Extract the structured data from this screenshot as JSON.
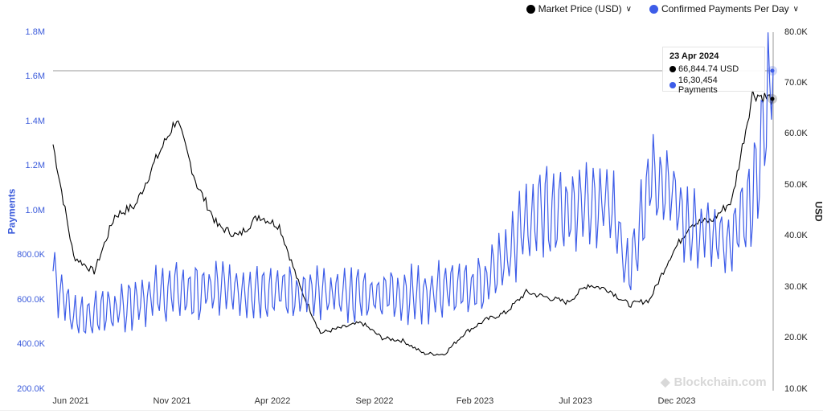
{
  "legend": [
    {
      "label": "Market Price (USD)",
      "color": "#000000"
    },
    {
      "label": "Confirmed Payments Per Day",
      "color": "#3d5ce8"
    }
  ],
  "axes": {
    "left": {
      "title": "Payments",
      "ticks": [
        "1.8M",
        "1.6M",
        "1.4M",
        "1.2M",
        "1.0M",
        "800.0K",
        "600.0K",
        "400.0K",
        "200.0K"
      ],
      "color": "#3b5bdb"
    },
    "right": {
      "title": "USD",
      "ticks": [
        "80.0K",
        "70.0K",
        "60.0K",
        "50.0K",
        "40.0K",
        "30.0K",
        "20.0K",
        "10.0K"
      ]
    },
    "x": {
      "ticks": [
        "Jun 2021",
        "Nov 2021",
        "Apr 2022",
        "Sep 2022",
        "Feb 2023",
        "Jul 2023",
        "Dec 2023"
      ]
    }
  },
  "tooltip": {
    "date": "23 Apr 2024",
    "price": "66,844.74 USD",
    "payments": "16,30,454 Payments"
  },
  "watermark": "Blockchain.com",
  "chart_data": {
    "type": "line",
    "title": "",
    "xlabel": "",
    "ylabel_left": "Payments",
    "ylabel_right": "USD",
    "ylim_left": [
      200000,
      1800000
    ],
    "ylim_right": [
      10000,
      80000
    ],
    "grid": false,
    "legend_position": "top-right",
    "x": [
      "2021-05",
      "2021-06",
      "2021-07",
      "2021-08",
      "2021-09",
      "2021-10",
      "2021-11",
      "2021-12",
      "2022-01",
      "2022-02",
      "2022-03",
      "2022-04",
      "2022-05",
      "2022-06",
      "2022-07",
      "2022-08",
      "2022-09",
      "2022-10",
      "2022-11",
      "2022-12",
      "2023-01",
      "2023-02",
      "2023-03",
      "2023-04",
      "2023-05",
      "2023-06",
      "2023-07",
      "2023-08",
      "2023-09",
      "2023-10",
      "2023-11",
      "2023-12",
      "2024-01",
      "2024-02",
      "2024-03",
      "2024-04"
    ],
    "series": [
      {
        "name": "Market Price (USD)",
        "axis": "right",
        "color": "#000000",
        "values": [
          58000,
          36000,
          33000,
          44000,
          46000,
          55000,
          63000,
          50000,
          42000,
          40000,
          44000,
          42000,
          30000,
          21000,
          22000,
          23000,
          20000,
          19500,
          17000,
          16800,
          21000,
          23500,
          25000,
          29000,
          28000,
          27000,
          30500,
          29500,
          26500,
          27500,
          36000,
          42500,
          43000,
          47000,
          68000,
          66800
        ]
      },
      {
        "name": "Confirmed Payments Per Day",
        "axis": "left",
        "color": "#3d5ce8",
        "values": [
          690000,
          520000,
          540000,
          560000,
          600000,
          620000,
          640000,
          630000,
          650000,
          640000,
          650000,
          640000,
          630000,
          620000,
          630000,
          620000,
          630000,
          630000,
          620000,
          650000,
          640000,
          680000,
          780000,
          950000,
          1000000,
          1000000,
          1050000,
          1050000,
          700000,
          1150000,
          1100000,
          900000,
          900000,
          850000,
          1050000,
          1630454
        ]
      }
    ],
    "annotations": [
      {
        "date": "23 Apr 2024",
        "Market Price (USD)": 66844.74,
        "Confirmed Payments Per Day": 1630454
      }
    ]
  }
}
